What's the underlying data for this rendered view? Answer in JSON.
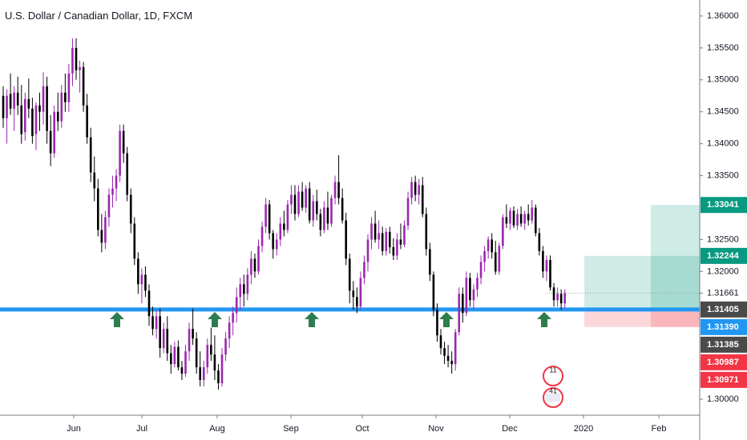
{
  "chart_data": {
    "type": "candlestick",
    "title": "U.S. Dollar / Canadian Dollar, 1D, FXCM",
    "x_ticks": [
      "Jun",
      "Jul",
      "Aug",
      "Sep",
      "Oct",
      "Nov",
      "Dec",
      "2020",
      "Feb"
    ],
    "y_ticks": [
      "1.36000",
      "1.35500",
      "1.35000",
      "1.34500",
      "1.34000",
      "1.33500",
      "1.32500",
      "1.32000",
      "1.31661",
      "1.31405",
      "1.31390",
      "1.31385",
      "1.30987",
      "1.30971",
      "1.30000"
    ],
    "ylim": [
      1.2975,
      1.3625
    ],
    "grid": false,
    "support_level": 1.31405,
    "price_labels": [
      {
        "value": 1.33041,
        "text": "1.33041",
        "color": "#089981"
      },
      {
        "value": 1.32244,
        "text": "1.32244",
        "color": "#089981"
      },
      {
        "value": 1.31405,
        "text": "1.31405",
        "color": "#4a4a4a"
      },
      {
        "value": 1.3139,
        "text": "1.31390",
        "color": "#2196f3"
      },
      {
        "value": 1.31385,
        "text": "1.31385",
        "color": "#4a4a4a"
      },
      {
        "value": 1.30987,
        "text": "1.30987",
        "color": "#f23645"
      },
      {
        "value": 1.30971,
        "text": "1.30971",
        "color": "#f23645"
      }
    ],
    "current_price": 1.31661,
    "position": {
      "entry": 1.31405,
      "target1": 1.32244,
      "target2": 1.33041,
      "stop": 1.3113
    },
    "support_touches": [
      "Jun 21",
      "Jul 31",
      "Sep 9",
      "Nov 1",
      "Dec 13"
    ],
    "colors": {
      "up": "#9c27b0",
      "down": "#000000",
      "support": "#2196f3",
      "arrow": "#2e7d4f",
      "profit": "#089981",
      "loss": "#f23645"
    },
    "candles": [
      [
        1.3475,
        1.349,
        1.3425,
        1.344
      ],
      [
        1.344,
        1.3485,
        1.34,
        1.3475
      ],
      [
        1.3478,
        1.351,
        1.3445,
        1.3455
      ],
      [
        1.3455,
        1.349,
        1.342,
        1.348
      ],
      [
        1.348,
        1.3505,
        1.3445,
        1.346
      ],
      [
        1.346,
        1.3492,
        1.34,
        1.3415
      ],
      [
        1.3418,
        1.348,
        1.3405,
        1.347
      ],
      [
        1.347,
        1.3502,
        1.344,
        1.3455
      ],
      [
        1.3455,
        1.3472,
        1.34,
        1.3412
      ],
      [
        1.3415,
        1.3465,
        1.339,
        1.346
      ],
      [
        1.346,
        1.348,
        1.342,
        1.345
      ],
      [
        1.345,
        1.3512,
        1.343,
        1.349
      ],
      [
        1.349,
        1.3505,
        1.34,
        1.342
      ],
      [
        1.342,
        1.3445,
        1.3365,
        1.3385
      ],
      [
        1.3385,
        1.346,
        1.3378,
        1.345
      ],
      [
        1.345,
        1.348,
        1.342,
        1.3435
      ],
      [
        1.3435,
        1.3492,
        1.3425,
        1.348
      ],
      [
        1.348,
        1.351,
        1.345,
        1.3465
      ],
      [
        1.3465,
        1.3525,
        1.345,
        1.351
      ],
      [
        1.351,
        1.3565,
        1.349,
        1.355
      ],
      [
        1.355,
        1.3565,
        1.35,
        1.3515
      ],
      [
        1.3515,
        1.353,
        1.348,
        1.352
      ],
      [
        1.352,
        1.3528,
        1.345,
        1.346
      ],
      [
        1.346,
        1.3478,
        1.34,
        1.341
      ],
      [
        1.341,
        1.3425,
        1.334,
        1.3355
      ],
      [
        1.3355,
        1.338,
        1.331,
        1.333
      ],
      [
        1.333,
        1.3345,
        1.3255,
        1.3265
      ],
      [
        1.3265,
        1.329,
        1.323,
        1.3245
      ],
      [
        1.3245,
        1.3295,
        1.3235,
        1.3285
      ],
      [
        1.3285,
        1.333,
        1.327,
        1.332
      ],
      [
        1.332,
        1.335,
        1.33,
        1.333
      ],
      [
        1.333,
        1.336,
        1.331,
        1.335
      ],
      [
        1.335,
        1.343,
        1.334,
        1.342
      ],
      [
        1.342,
        1.343,
        1.337,
        1.3385
      ],
      [
        1.3385,
        1.3395,
        1.331,
        1.332
      ],
      [
        1.332,
        1.333,
        1.326,
        1.3275
      ],
      [
        1.3275,
        1.3285,
        1.321,
        1.322
      ],
      [
        1.322,
        1.323,
        1.3165,
        1.318
      ],
      [
        1.318,
        1.3205,
        1.315,
        1.3195
      ],
      [
        1.3195,
        1.3208,
        1.316,
        1.317
      ],
      [
        1.317,
        1.318,
        1.3115,
        1.313
      ],
      [
        1.313,
        1.3145,
        1.31,
        1.311
      ],
      [
        1.311,
        1.314,
        1.3095,
        1.313
      ],
      [
        1.313,
        1.3142,
        1.3065,
        1.308
      ],
      [
        1.308,
        1.312,
        1.3072,
        1.311
      ],
      [
        1.311,
        1.313,
        1.306,
        1.3072
      ],
      [
        1.3072,
        1.3085,
        1.304,
        1.3055
      ],
      [
        1.3055,
        1.309,
        1.305,
        1.3082
      ],
      [
        1.3082,
        1.3092,
        1.3045,
        1.305
      ],
      [
        1.305,
        1.306,
        1.303,
        1.304
      ],
      [
        1.304,
        1.3085,
        1.3035,
        1.3075
      ],
      [
        1.3075,
        1.312,
        1.306,
        1.311
      ],
      [
        1.311,
        1.3142,
        1.3085,
        1.3095
      ],
      [
        1.3095,
        1.3105,
        1.304,
        1.305
      ],
      [
        1.305,
        1.3075,
        1.302,
        1.303
      ],
      [
        1.303,
        1.306,
        1.302,
        1.305
      ],
      [
        1.305,
        1.3095,
        1.304,
        1.3085
      ],
      [
        1.3085,
        1.3112,
        1.306,
        1.307
      ],
      [
        1.307,
        1.31,
        1.303,
        1.3045
      ],
      [
        1.3045,
        1.3055,
        1.3015,
        1.3025
      ],
      [
        1.3025,
        1.308,
        1.302,
        1.307
      ],
      [
        1.307,
        1.3105,
        1.306,
        1.3095
      ],
      [
        1.3095,
        1.313,
        1.308,
        1.312
      ],
      [
        1.312,
        1.3145,
        1.31,
        1.3135
      ],
      [
        1.3135,
        1.3175,
        1.312,
        1.316
      ],
      [
        1.316,
        1.319,
        1.314,
        1.318
      ],
      [
        1.318,
        1.3195,
        1.3145,
        1.3165
      ],
      [
        1.3165,
        1.3205,
        1.3155,
        1.3195
      ],
      [
        1.3195,
        1.3232,
        1.318,
        1.322
      ],
      [
        1.322,
        1.3228,
        1.319,
        1.32
      ],
      [
        1.32,
        1.325,
        1.3195,
        1.324
      ],
      [
        1.324,
        1.3278,
        1.323,
        1.327
      ],
      [
        1.327,
        1.3315,
        1.326,
        1.3305
      ],
      [
        1.3305,
        1.3312,
        1.325,
        1.326
      ],
      [
        1.326,
        1.3265,
        1.322,
        1.3235
      ],
      [
        1.3235,
        1.326,
        1.3225,
        1.325
      ],
      [
        1.325,
        1.3285,
        1.324,
        1.3275
      ],
      [
        1.3275,
        1.3295,
        1.3255,
        1.3265
      ],
      [
        1.3265,
        1.3312,
        1.326,
        1.3305
      ],
      [
        1.3305,
        1.3335,
        1.329,
        1.332
      ],
      [
        1.332,
        1.3335,
        1.328,
        1.329
      ],
      [
        1.329,
        1.3335,
        1.3285,
        1.3325
      ],
      [
        1.3325,
        1.334,
        1.3295,
        1.33
      ],
      [
        1.33,
        1.3335,
        1.3292,
        1.333
      ],
      [
        1.333,
        1.334,
        1.3275,
        1.328
      ],
      [
        1.328,
        1.332,
        1.327,
        1.331
      ],
      [
        1.331,
        1.3328,
        1.328,
        1.329
      ],
      [
        1.329,
        1.3298,
        1.3255,
        1.3265
      ],
      [
        1.3265,
        1.331,
        1.326,
        1.33
      ],
      [
        1.33,
        1.3325,
        1.3265,
        1.3275
      ],
      [
        1.3275,
        1.332,
        1.327,
        1.3315
      ],
      [
        1.3315,
        1.335,
        1.3305,
        1.334
      ],
      [
        1.334,
        1.3382,
        1.3305,
        1.3315
      ],
      [
        1.3315,
        1.333,
        1.3275,
        1.328
      ],
      [
        1.328,
        1.3292,
        1.321,
        1.322
      ],
      [
        1.322,
        1.3228,
        1.315,
        1.317
      ],
      [
        1.317,
        1.3185,
        1.314,
        1.316
      ],
      [
        1.316,
        1.3175,
        1.3135,
        1.3145
      ],
      [
        1.3145,
        1.32,
        1.314,
        1.319
      ],
      [
        1.319,
        1.3225,
        1.318,
        1.3215
      ],
      [
        1.3215,
        1.3258,
        1.32,
        1.325
      ],
      [
        1.325,
        1.3285,
        1.3235,
        1.3275
      ],
      [
        1.3275,
        1.3295,
        1.3245,
        1.325
      ],
      [
        1.325,
        1.328,
        1.3235,
        1.326
      ],
      [
        1.326,
        1.327,
        1.3225,
        1.3232
      ],
      [
        1.3232,
        1.3268,
        1.3225,
        1.3262
      ],
      [
        1.3262,
        1.327,
        1.3228,
        1.3238
      ],
      [
        1.3238,
        1.3252,
        1.3218,
        1.3225
      ],
      [
        1.3225,
        1.326,
        1.3218,
        1.325
      ],
      [
        1.325,
        1.3275,
        1.3235,
        1.3242
      ],
      [
        1.3242,
        1.328,
        1.3238,
        1.3272
      ],
      [
        1.3272,
        1.3325,
        1.3265,
        1.3315
      ],
      [
        1.3315,
        1.3348,
        1.3305,
        1.334
      ],
      [
        1.334,
        1.335,
        1.331,
        1.332
      ],
      [
        1.332,
        1.3345,
        1.3305,
        1.3335
      ],
      [
        1.3335,
        1.3348,
        1.3285,
        1.329
      ],
      [
        1.329,
        1.33,
        1.3225,
        1.3235
      ],
      [
        1.3235,
        1.3245,
        1.3185,
        1.3195
      ],
      [
        1.3195,
        1.32,
        1.313,
        1.314
      ],
      [
        1.314,
        1.315,
        1.309,
        1.31
      ],
      [
        1.31,
        1.311,
        1.307,
        1.308
      ],
      [
        1.308,
        1.309,
        1.3055,
        1.3068
      ],
      [
        1.3068,
        1.3085,
        1.305,
        1.306
      ],
      [
        1.306,
        1.3075,
        1.304,
        1.3055
      ],
      [
        1.3055,
        1.311,
        1.3045,
        1.3105
      ],
      [
        1.3105,
        1.3175,
        1.31,
        1.3165
      ],
      [
        1.3165,
        1.3175,
        1.312,
        1.3135
      ],
      [
        1.3135,
        1.32,
        1.313,
        1.319
      ],
      [
        1.319,
        1.3198,
        1.3145,
        1.3155
      ],
      [
        1.3155,
        1.318,
        1.314,
        1.3172
      ],
      [
        1.3172,
        1.3198,
        1.316,
        1.319
      ],
      [
        1.319,
        1.3225,
        1.318,
        1.3215
      ],
      [
        1.3215,
        1.324,
        1.32,
        1.3232
      ],
      [
        1.3232,
        1.3255,
        1.322,
        1.325
      ],
      [
        1.325,
        1.326,
        1.322,
        1.323
      ],
      [
        1.323,
        1.3248,
        1.3195,
        1.32
      ],
      [
        1.32,
        1.3245,
        1.3195,
        1.324
      ],
      [
        1.324,
        1.329,
        1.3235,
        1.3285
      ],
      [
        1.3285,
        1.3305,
        1.3268,
        1.3275
      ],
      [
        1.3275,
        1.33,
        1.3265,
        1.3295
      ],
      [
        1.3295,
        1.3302,
        1.3268,
        1.3272
      ],
      [
        1.3272,
        1.3298,
        1.3265,
        1.329
      ],
      [
        1.329,
        1.3302,
        1.327,
        1.3275
      ],
      [
        1.3275,
        1.3295,
        1.3265,
        1.329
      ],
      [
        1.329,
        1.3305,
        1.3272,
        1.328
      ],
      [
        1.328,
        1.3312,
        1.3275,
        1.33
      ],
      [
        1.33,
        1.3305,
        1.3255,
        1.326
      ],
      [
        1.326,
        1.3268,
        1.3225,
        1.3232
      ],
      [
        1.3232,
        1.324,
        1.319,
        1.32
      ],
      [
        1.32,
        1.3225,
        1.3185,
        1.3218
      ],
      [
        1.3218,
        1.3225,
        1.317,
        1.3175
      ],
      [
        1.3175,
        1.3182,
        1.3145,
        1.3155
      ],
      [
        1.3155,
        1.3175,
        1.3145,
        1.3165
      ],
      [
        1.3165,
        1.3172,
        1.314,
        1.315
      ],
      [
        1.315,
        1.3172,
        1.3142,
        1.3166
      ]
    ]
  },
  "legend_badge": {
    "line1": "11",
    "line2": "41"
  }
}
